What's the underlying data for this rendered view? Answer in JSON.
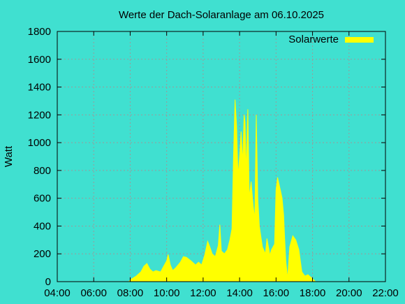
{
  "chart_data": {
    "type": "area",
    "title": "Werte der Dach-Solaranlage am 06.10.2025",
    "ylabel": "Watt",
    "xlabel": "",
    "ylim": [
      0,
      1800
    ],
    "xlim": [
      "04:00",
      "22:00"
    ],
    "x_ticks": [
      "04:00",
      "06:00",
      "08:00",
      "10:00",
      "12:00",
      "14:00",
      "16:00",
      "18:00",
      "20:00",
      "22:00"
    ],
    "y_ticks": [
      "0",
      "200",
      "400",
      "600",
      "800",
      "1000",
      "1200",
      "1400",
      "1600",
      "1800"
    ],
    "grid": true,
    "legend": "top-right",
    "series": [
      {
        "name": "Solarwerte",
        "color": "#ffff00",
        "points": [
          [
            "07:55",
            0
          ],
          [
            "08:05",
            20
          ],
          [
            "08:20",
            40
          ],
          [
            "08:35",
            70
          ],
          [
            "08:45",
            110
          ],
          [
            "08:55",
            130
          ],
          [
            "09:05",
            90
          ],
          [
            "09:15",
            70
          ],
          [
            "09:25",
            80
          ],
          [
            "09:40",
            70
          ],
          [
            "09:50",
            110
          ],
          [
            "10:00",
            150
          ],
          [
            "10:05",
            195
          ],
          [
            "10:12",
            120
          ],
          [
            "10:20",
            80
          ],
          [
            "10:30",
            100
          ],
          [
            "10:45",
            140
          ],
          [
            "10:55",
            180
          ],
          [
            "11:05",
            175
          ],
          [
            "11:20",
            150
          ],
          [
            "11:35",
            120
          ],
          [
            "11:45",
            140
          ],
          [
            "11:55",
            120
          ],
          [
            "12:05",
            190
          ],
          [
            "12:15",
            290
          ],
          [
            "12:22",
            250
          ],
          [
            "12:30",
            200
          ],
          [
            "12:40",
            180
          ],
          [
            "12:50",
            260
          ],
          [
            "12:55",
            410
          ],
          [
            "13:00",
            220
          ],
          [
            "13:10",
            200
          ],
          [
            "13:20",
            230
          ],
          [
            "13:28",
            300
          ],
          [
            "13:35",
            380
          ],
          [
            "13:40",
            900
          ],
          [
            "13:45",
            1310
          ],
          [
            "13:50",
            1120
          ],
          [
            "13:55",
            760
          ],
          [
            "14:00",
            900
          ],
          [
            "14:05",
            1080
          ],
          [
            "14:10",
            850
          ],
          [
            "14:15",
            1200
          ],
          [
            "14:18",
            1150
          ],
          [
            "14:22",
            780
          ],
          [
            "14:27",
            1240
          ],
          [
            "14:32",
            600
          ],
          [
            "14:38",
            720
          ],
          [
            "14:45",
            540
          ],
          [
            "14:50",
            450
          ],
          [
            "14:55",
            1200
          ],
          [
            "15:00",
            600
          ],
          [
            "15:05",
            400
          ],
          [
            "15:15",
            250
          ],
          [
            "15:25",
            200
          ],
          [
            "15:30",
            310
          ],
          [
            "15:40",
            190
          ],
          [
            "15:45",
            230
          ],
          [
            "15:55",
            270
          ],
          [
            "16:00",
            660
          ],
          [
            "16:05",
            750
          ],
          [
            "16:10",
            700
          ],
          [
            "16:15",
            650
          ],
          [
            "16:20",
            600
          ],
          [
            "16:25",
            480
          ],
          [
            "16:28",
            330
          ],
          [
            "16:32",
            150
          ],
          [
            "16:38",
            20
          ],
          [
            "16:45",
            250
          ],
          [
            "16:55",
            330
          ],
          [
            "17:05",
            300
          ],
          [
            "17:15",
            230
          ],
          [
            "17:25",
            70
          ],
          [
            "17:35",
            40
          ],
          [
            "17:45",
            50
          ],
          [
            "17:55",
            30
          ],
          [
            "18:05",
            10
          ],
          [
            "18:10",
            0
          ]
        ]
      }
    ]
  }
}
